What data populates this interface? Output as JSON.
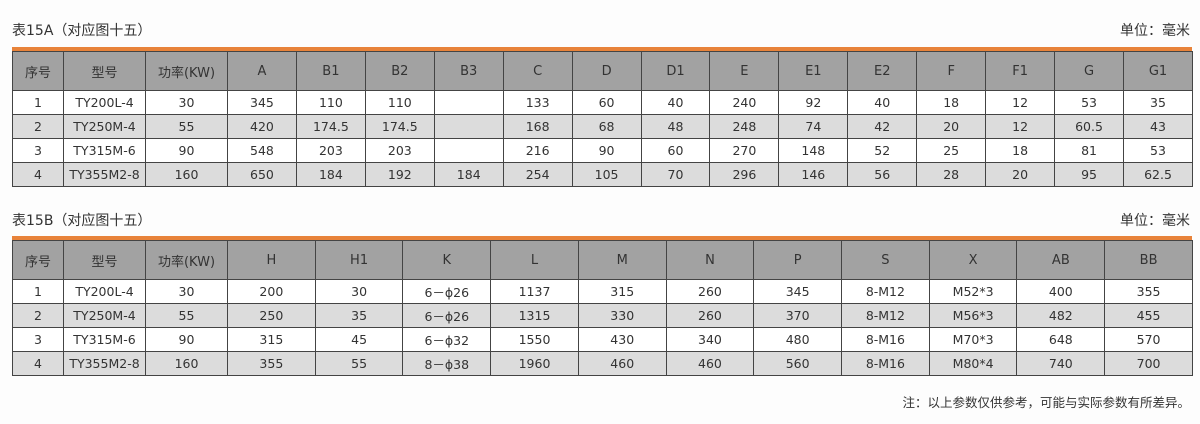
{
  "accent_color": "#e8833a",
  "unit_label": "单位：毫米",
  "table_a": {
    "title": "表15A（对应图十五）",
    "headers": [
      "序号",
      "型号",
      "功率(KW)",
      "A",
      "B1",
      "B2",
      "B3",
      "C",
      "D",
      "D1",
      "E",
      "E1",
      "E2",
      "F",
      "F1",
      "G",
      "G1"
    ],
    "rows": [
      [
        "1",
        "TY200L-4",
        "30",
        "345",
        "110",
        "110",
        "",
        "133",
        "60",
        "40",
        "240",
        "92",
        "40",
        "18",
        "12",
        "53",
        "35"
      ],
      [
        "2",
        "TY250M-4",
        "55",
        "420",
        "174.5",
        "174.5",
        "",
        "168",
        "68",
        "48",
        "248",
        "74",
        "42",
        "20",
        "12",
        "60.5",
        "43"
      ],
      [
        "3",
        "TY315M-6",
        "90",
        "548",
        "203",
        "203",
        "",
        "216",
        "90",
        "60",
        "270",
        "148",
        "52",
        "25",
        "18",
        "81",
        "53"
      ],
      [
        "4",
        "TY355M2-8",
        "160",
        "650",
        "184",
        "192",
        "184",
        "254",
        "105",
        "70",
        "296",
        "146",
        "56",
        "28",
        "20",
        "95",
        "62.5"
      ]
    ]
  },
  "table_b": {
    "title": "表15B（对应图十五）",
    "headers": [
      "序号",
      "型号",
      "功率(KW)",
      "H",
      "H1",
      "K",
      "L",
      "M",
      "N",
      "P",
      "S",
      "X",
      "AB",
      "BB"
    ],
    "rows": [
      [
        "1",
        "TY200L-4",
        "30",
        "200",
        "30",
        "6－ɸ26",
        "1137",
        "315",
        "260",
        "345",
        "8-M12",
        "M52*3",
        "400",
        "355"
      ],
      [
        "2",
        "TY250M-4",
        "55",
        "250",
        "35",
        "6－ɸ26",
        "1315",
        "330",
        "260",
        "370",
        "8-M12",
        "M56*3",
        "482",
        "455"
      ],
      [
        "3",
        "TY315M-6",
        "90",
        "315",
        "45",
        "6－ɸ32",
        "1550",
        "430",
        "340",
        "480",
        "8-M16",
        "M70*3",
        "648",
        "570"
      ],
      [
        "4",
        "TY355M2-8",
        "160",
        "355",
        "55",
        "8－ɸ38",
        "1960",
        "460",
        "460",
        "560",
        "8-M16",
        "M80*4",
        "740",
        "700"
      ]
    ]
  },
  "note": "注：以上参数仅供参考，可能与实际参数有所差异。"
}
